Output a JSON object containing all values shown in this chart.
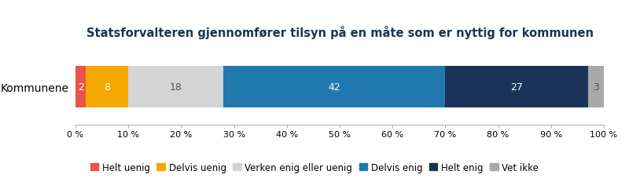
{
  "title": "Statsforvalteren gjennomfører tilsyn på en måte som er nyttig for kommunen",
  "segments": [
    {
      "label": "Helt uenig",
      "value": 2,
      "color": "#e8534a"
    },
    {
      "label": "Delvis uenig",
      "value": 8,
      "color": "#f5a800"
    },
    {
      "label": "Verken enig eller uenig",
      "value": 18,
      "color": "#d4d4d4"
    },
    {
      "label": "Delvis enig",
      "value": 42,
      "color": "#2178ae"
    },
    {
      "label": "Helt enig",
      "value": 27,
      "color": "#1a3459"
    },
    {
      "label": "Vet ikke",
      "value": 3,
      "color": "#a8a8a8"
    }
  ],
  "xlim": [
    0,
    100
  ],
  "xticks": [
    0,
    10,
    20,
    30,
    40,
    50,
    60,
    70,
    80,
    90,
    100
  ],
  "xtick_labels": [
    "0 %",
    "10 %",
    "20 %",
    "30 %",
    "40 %",
    "50 %",
    "60 %",
    "70 %",
    "80 %",
    "90 %",
    "100 %"
  ],
  "ylabel": "Kommunene",
  "title_fontsize": 10.5,
  "title_color": "#1a3459",
  "bar_height": 0.55,
  "label_fontsize": 9,
  "legend_fontsize": 8.5,
  "tick_fontsize": 8,
  "ylabel_fontsize": 10
}
